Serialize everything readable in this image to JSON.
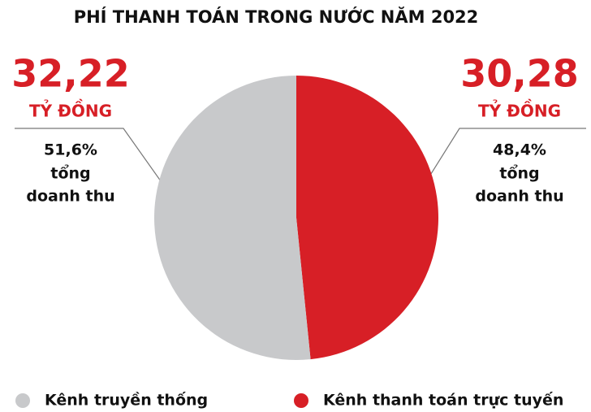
{
  "chart_data": {
    "type": "pie",
    "title": "PHÍ THANH TOÁN TRONG NƯỚC NĂM 2022",
    "categories": [
      "Kênh truyền thống",
      "Kênh thanh toán trực tuyến"
    ],
    "values": [
      51.6,
      48.4
    ],
    "value_labels": [
      "51,6%",
      "48,4%"
    ],
    "colors": [
      "#c8c9cb",
      "#d71f26"
    ],
    "amounts": [
      32.22,
      30.28
    ],
    "amount_labels": [
      "32,22",
      "30,28"
    ],
    "amount_unit": "TỶ ĐỒNG",
    "share_caption": [
      "tổng",
      "doanh thu"
    ]
  }
}
